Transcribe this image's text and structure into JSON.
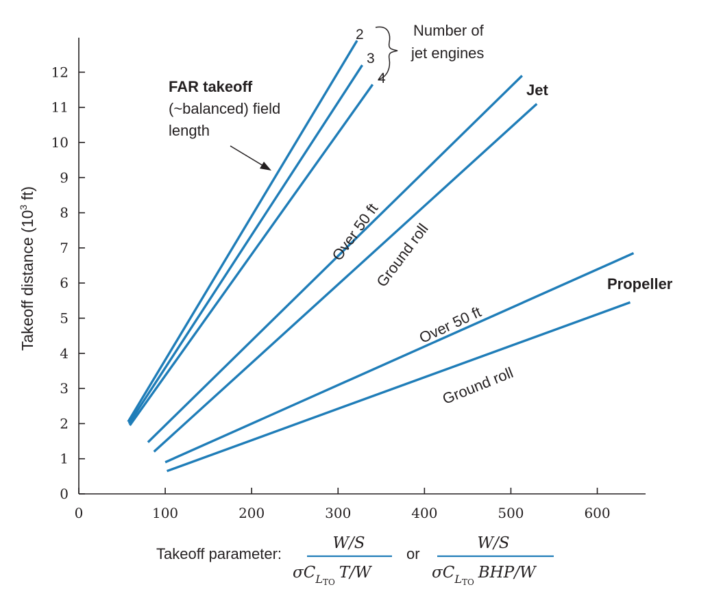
{
  "chart_data": {
    "type": "line",
    "title": "",
    "xlabel": "Takeoff parameter:",
    "ylabel": "Takeoff distance (10³ ft)",
    "xlim": [
      0,
      650
    ],
    "ylim": [
      0,
      12.8
    ],
    "x_ticks": [
      "0",
      "100",
      "200",
      "300",
      "400",
      "500",
      "600"
    ],
    "y_ticks": [
      "0",
      "1",
      "2",
      "3",
      "4",
      "5",
      "6",
      "7",
      "8",
      "9",
      "10",
      "11",
      "12"
    ],
    "grid": false,
    "line_color": "#1f7db8",
    "series": [
      {
        "name": "2",
        "group": "FAR takeoff",
        "x": [
          57,
          322
        ],
        "y": [
          2.05,
          12.9
        ]
      },
      {
        "name": "3",
        "group": "FAR takeoff",
        "x": [
          58,
          328
        ],
        "y": [
          2.0,
          12.2
        ]
      },
      {
        "name": "4",
        "group": "FAR takeoff",
        "x": [
          59,
          340
        ],
        "y": [
          1.95,
          11.65
        ]
      },
      {
        "name": "Over 50 ft",
        "group": "Jet",
        "x": [
          80,
          513
        ],
        "y": [
          1.47,
          11.9
        ]
      },
      {
        "name": "Ground roll",
        "group": "Jet",
        "x": [
          87,
          530
        ],
        "y": [
          1.2,
          11.1
        ]
      },
      {
        "name": "Over 50 ft",
        "group": "Propeller",
        "x": [
          100,
          642
        ],
        "y": [
          0.9,
          6.85
        ]
      },
      {
        "name": "Ground roll",
        "group": "Propeller",
        "x": [
          102,
          638
        ],
        "y": [
          0.65,
          5.45
        ]
      }
    ],
    "annotations": {
      "far_title": "FAR takeoff",
      "far_line2": "(~balanced) field",
      "far_line3": "length",
      "engines_line1": "Number of",
      "engines_line2": "jet engines",
      "engine_labels": [
        "2",
        "3",
        "4"
      ],
      "jet_group": "Jet",
      "propeller_group": "Propeller",
      "jet_over": "Over 50 ft",
      "jet_ground": "Ground roll",
      "prop_over": "Over 50 ft",
      "prop_ground": "Ground roll",
      "or_text": "or",
      "frac1_num": "W/S",
      "frac1_den_sigma": "σC",
      "frac1_den_sub": "L",
      "frac1_den_subsub": "TO",
      "frac1_den_rest": "T/W",
      "frac2_num": "W/S",
      "frac2_den_sigma": "σC",
      "frac2_den_sub": "L",
      "frac2_den_subsub": "TO",
      "frac2_den_rest": "BHP/W"
    }
  }
}
